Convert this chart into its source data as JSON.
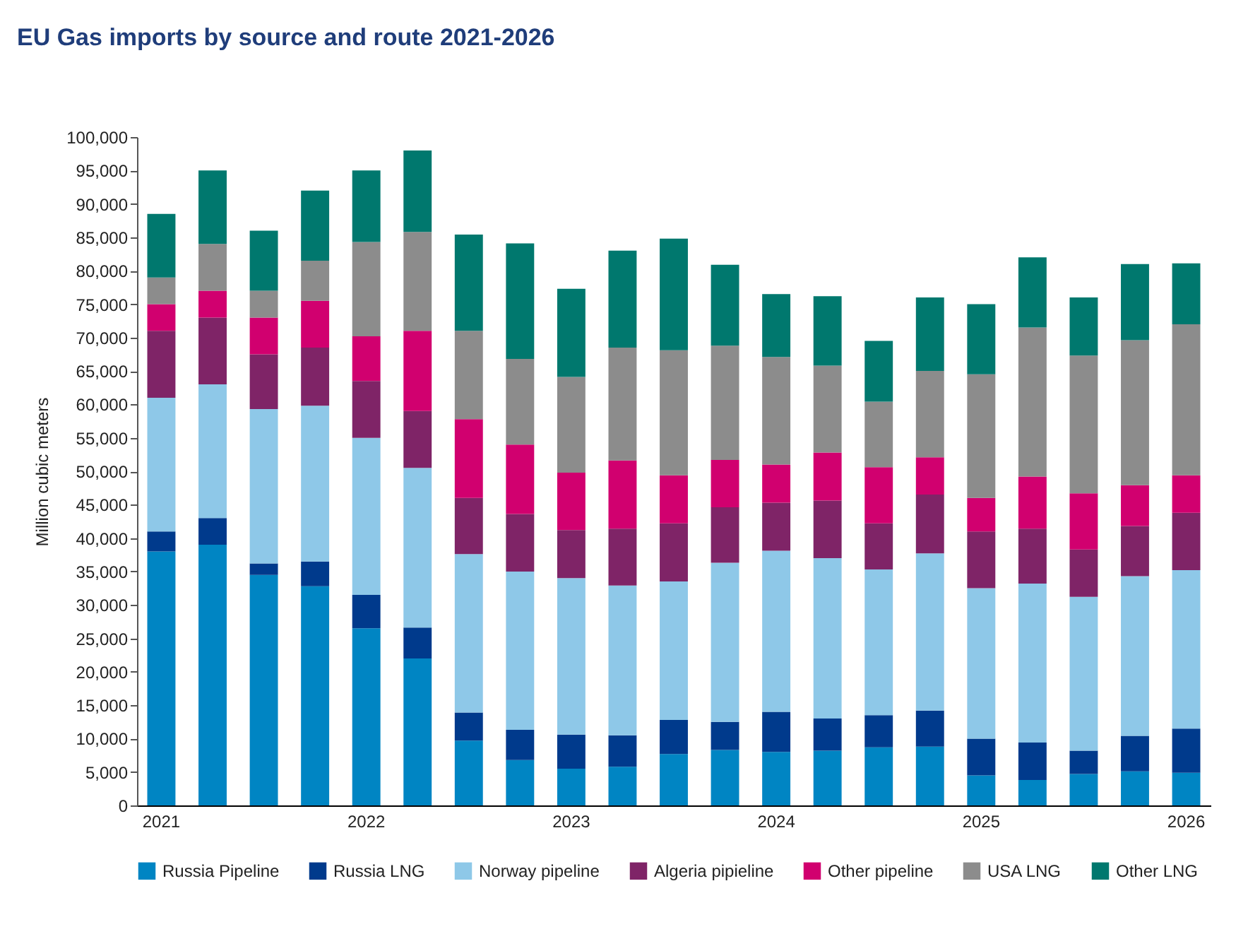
{
  "chart_data": {
    "type": "bar",
    "stacked": true,
    "title": "EU Gas imports by source and route 2021-2026",
    "ylabel": "Million cubic meters",
    "categories": [
      "2021",
      null,
      null,
      null,
      "2022",
      null,
      null,
      null,
      "2023",
      null,
      null,
      null,
      "2024",
      null,
      null,
      null,
      "2025",
      null,
      null,
      null,
      "2026"
    ],
    "ylim": [
      0,
      100000
    ],
    "yticks": [
      {
        "value": 0,
        "label": "0"
      },
      {
        "value": 5000,
        "label": "5,000"
      },
      {
        "value": 10000,
        "label": "10,000"
      },
      {
        "value": 15000,
        "label": "15,000"
      },
      {
        "value": 20000,
        "label": "20,000"
      },
      {
        "value": 25000,
        "label": "25,000"
      },
      {
        "value": 30000,
        "label": "30,000"
      },
      {
        "value": 35000,
        "label": "35,000"
      },
      {
        "value": 40000,
        "label": "40,000"
      },
      {
        "value": 45000,
        "label": "45,000"
      },
      {
        "value": 50000,
        "label": "50,000"
      },
      {
        "value": 55000,
        "label": "55,000"
      },
      {
        "value": 60000,
        "label": "60,000"
      },
      {
        "value": 65000,
        "label": "65,000"
      },
      {
        "value": 70000,
        "label": "70,000"
      },
      {
        "value": 75000,
        "label": "75,000"
      },
      {
        "value": 80000,
        "label": "80,000"
      },
      {
        "value": 85000,
        "label": "85,000"
      },
      {
        "value": 90000,
        "label": "90,000"
      },
      {
        "value": 95000,
        "label": "95,000"
      },
      {
        "value": 100000,
        "label": "100,000"
      }
    ],
    "grid": false,
    "legend": "bottom",
    "series": [
      {
        "name": "Russia Pipeline",
        "color": "#0085c3",
        "values": [
          38000,
          39000,
          34500,
          32800,
          26500,
          22000,
          9700,
          6800,
          5500,
          5800,
          7700,
          8300,
          8000,
          8200,
          8700,
          8800,
          4500,
          3800,
          4700,
          5100,
          4900
        ]
      },
      {
        "name": "Russia LNG",
        "color": "#003a8c",
        "values": [
          3000,
          4000,
          1700,
          3700,
          5000,
          4600,
          4200,
          4500,
          5100,
          4700,
          5100,
          4200,
          6000,
          4800,
          4800,
          5400,
          5500,
          5600,
          3500,
          5300,
          6600
        ]
      },
      {
        "name": "Norway pipeline",
        "color": "#8ec8e8",
        "values": [
          20000,
          20000,
          23100,
          23300,
          23500,
          23900,
          23700,
          23700,
          23400,
          22400,
          20700,
          23800,
          24100,
          24000,
          21800,
          23500,
          22500,
          23800,
          23000,
          23900,
          23700
        ]
      },
      {
        "name": "Algeria pipieline",
        "color": "#7f2467",
        "values": [
          10000,
          10000,
          8200,
          8700,
          8500,
          8500,
          8400,
          8600,
          7200,
          8500,
          8700,
          8300,
          7200,
          8600,
          6900,
          8800,
          8500,
          8200,
          7100,
          7500,
          8600
        ]
      },
      {
        "name": "Other pipeline",
        "color": "#d1006f",
        "values": [
          4000,
          4000,
          5500,
          7000,
          6700,
          12000,
          11800,
          10400,
          8600,
          10200,
          7200,
          7100,
          5700,
          7200,
          8400,
          5600,
          5000,
          7800,
          8400,
          6100,
          5600
        ]
      },
      {
        "name": "USA LNG",
        "color": "#8c8c8c",
        "values": [
          4000,
          7000,
          4000,
          6000,
          14100,
          14800,
          13200,
          12800,
          14300,
          16900,
          18700,
          17100,
          16100,
          13000,
          9800,
          12900,
          18500,
          22300,
          20600,
          21700,
          22600
        ]
      },
      {
        "name": "Other LNG",
        "color": "#00786e",
        "values": [
          9500,
          11000,
          9000,
          10500,
          10700,
          12200,
          14400,
          17300,
          13200,
          14500,
          16700,
          12100,
          9400,
          10400,
          9100,
          11000,
          10500,
          10500,
          8700,
          11400,
          9100
        ]
      }
    ]
  }
}
